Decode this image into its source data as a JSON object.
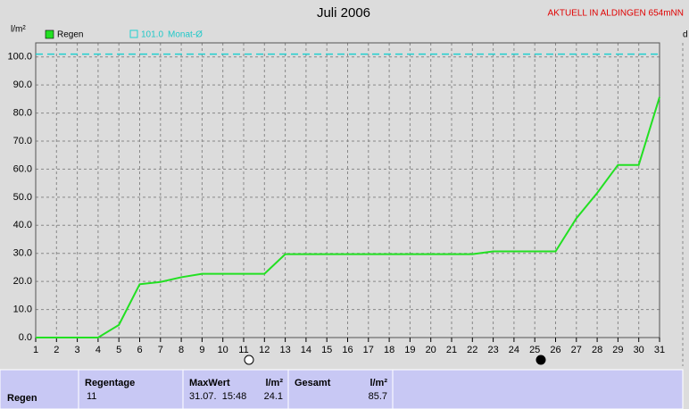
{
  "chart_data": {
    "type": "line",
    "title": "Juli 2006",
    "subtitle": "AKTUELL IN ALDINGEN 654mNN",
    "y_label": "l/m²",
    "x": [
      1,
      2,
      3,
      4,
      5,
      6,
      7,
      8,
      9,
      10,
      11,
      12,
      13,
      14,
      15,
      16,
      17,
      18,
      19,
      20,
      21,
      22,
      23,
      24,
      25,
      26,
      27,
      28,
      29,
      30,
      31
    ],
    "series": [
      {
        "name": "Regen",
        "color": "#22e022",
        "values": [
          0,
          0,
          0,
          0,
          4.5,
          19,
          19.8,
          21.5,
          22.7,
          22.7,
          22.7,
          22.7,
          29.7,
          29.7,
          29.7,
          29.7,
          29.7,
          29.7,
          29.7,
          29.7,
          29.7,
          29.7,
          30.7,
          30.7,
          30.7,
          30.7,
          42.5,
          51.5,
          61.5,
          61.5,
          85.7
        ]
      }
    ],
    "reference": {
      "name": "Monat-Ø",
      "value": 101.0,
      "label": "101.0",
      "color": "#20d0d0"
    },
    "xlim": [
      1,
      31
    ],
    "xticks": [
      1,
      2,
      3,
      4,
      5,
      6,
      7,
      8,
      9,
      10,
      11,
      12,
      13,
      14,
      15,
      16,
      17,
      18,
      19,
      20,
      21,
      22,
      23,
      24,
      25,
      26,
      27,
      28,
      29,
      30,
      31
    ],
    "ylim": [
      0,
      105
    ],
    "yticks": [
      {
        "value": 0,
        "label": "0.0"
      },
      {
        "value": 10,
        "label": "10.0"
      },
      {
        "value": 20,
        "label": "20.0"
      },
      {
        "value": 30,
        "label": "30.0"
      },
      {
        "value": 40,
        "label": "40.0"
      },
      {
        "value": 50,
        "label": "50.0"
      },
      {
        "value": 60,
        "label": "60.0"
      },
      {
        "value": 70,
        "label": "70.0"
      },
      {
        "value": 80,
        "label": "80.0"
      },
      {
        "value": 90,
        "label": "90.0"
      },
      {
        "value": 100,
        "label": "100.0"
      }
    ],
    "grid": true
  },
  "table": {
    "headers": [
      "Regentage",
      "MaxWert",
      "l/m²",
      "Gesamt",
      "l/m²"
    ],
    "rows": [
      [
        "Regen",
        "11",
        "31.07.  15:48",
        "24.1",
        "85.7"
      ]
    ]
  }
}
